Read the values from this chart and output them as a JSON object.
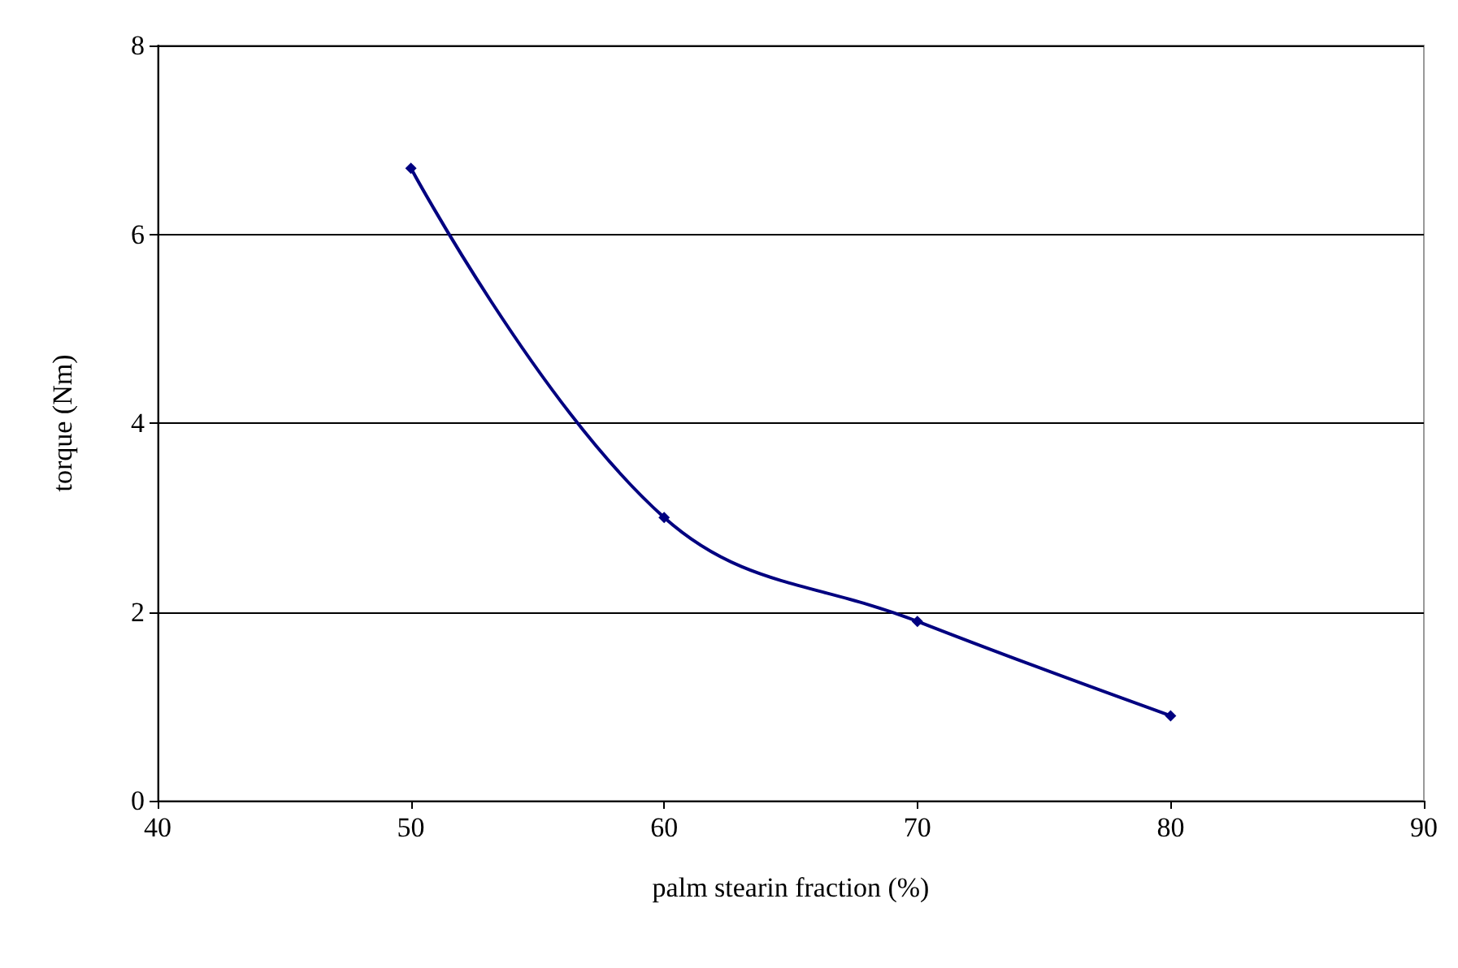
{
  "chart_data": {
    "type": "line",
    "xlabel": "palm stearin fraction (%)",
    "ylabel": "torque (Nm)",
    "x": [
      50,
      60,
      70,
      80
    ],
    "series": [
      {
        "color": "#000080",
        "values": [
          6.7,
          3.0,
          1.9,
          0.9
        ]
      }
    ],
    "xlim": [
      40,
      90
    ],
    "xticks": [
      40,
      50,
      60,
      70,
      80,
      90
    ],
    "ylim": [
      0,
      8
    ],
    "yticks": [
      0,
      2,
      4,
      6,
      8
    ],
    "grid": "y",
    "marker": "diamond",
    "line_style": "solid"
  }
}
